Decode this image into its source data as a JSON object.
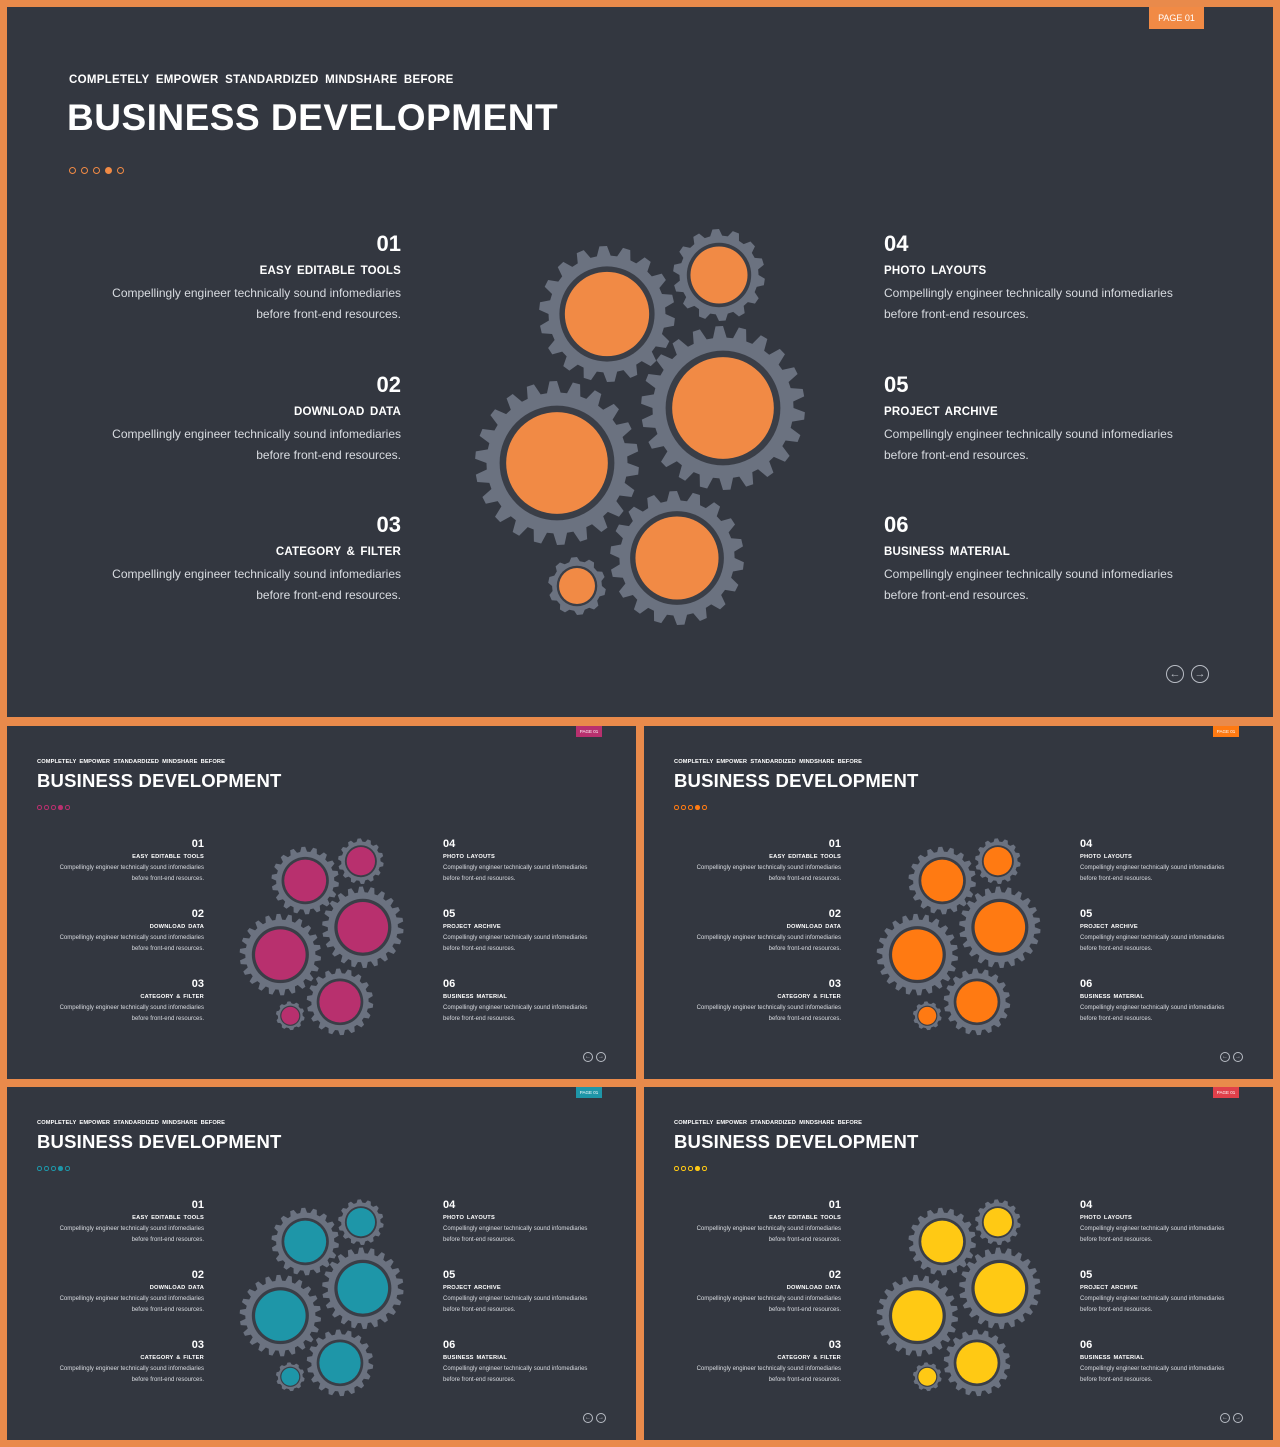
{
  "slides": [
    {
      "badge": "PAGE 01",
      "accent": "#f18a45",
      "kicker": "COMPLETELY  EMPOWER  STANDARDIZED  MINDSHARE  BEFORE",
      "title": "BUSINESS DEVELOPMENT",
      "items": [
        {
          "num": "01",
          "head": "EASY EDITABLE TOOLS",
          "desc1": "Compellingly engineer technically sound infomediaries",
          "desc2": "before front-end resources."
        },
        {
          "num": "02",
          "head": "DOWNLOAD DATA",
          "desc1": "Compellingly engineer technically sound infomediaries",
          "desc2": "before front-end resources."
        },
        {
          "num": "03",
          "head": "CATEGORY  &  FILTER",
          "desc1": "Compellingly engineer technically sound infomediaries",
          "desc2": "before front-end resources."
        },
        {
          "num": "04",
          "head": "PHOTO LAYOUTS",
          "desc1": "Compellingly engineer technically sound infomediaries",
          "desc2": "before front-end resources."
        },
        {
          "num": "05",
          "head": "PROJECT  ARCHIVE",
          "desc1": "Compellingly engineer technically sound infomediaries",
          "desc2": "before front-end resources."
        },
        {
          "num": "06",
          "head": "BUSINESS  MATERIAL",
          "desc1": "Compellingly engineer technically sound infomediaries",
          "desc2": "before front-end resources."
        }
      ],
      "nav_prev": "←",
      "nav_next": "→"
    },
    {
      "badge": "PAGE 01",
      "accent": "#b8306e",
      "kicker": "COMPLETELY  EMPOWER  STANDARDIZED  MINDSHARE  BEFORE",
      "title": "BUSINESS DEVELOPMENT",
      "items": [
        {
          "num": "01",
          "head": "EASY EDITABLE TOOLS",
          "desc1": "Compellingly engineer technically sound infomediaries",
          "desc2": "before front-end resources."
        },
        {
          "num": "02",
          "head": "DOWNLOAD DATA",
          "desc1": "Compellingly engineer technically sound infomediaries",
          "desc2": "before front-end resources."
        },
        {
          "num": "03",
          "head": "CATEGORY  &  FILTER",
          "desc1": "Compellingly engineer technically sound infomediaries",
          "desc2": "before front-end resources."
        },
        {
          "num": "04",
          "head": "PHOTO LAYOUTS",
          "desc1": "Compellingly engineer technically sound infomediaries",
          "desc2": "before front-end resources."
        },
        {
          "num": "05",
          "head": "PROJECT  ARCHIVE",
          "desc1": "Compellingly engineer technically sound infomediaries",
          "desc2": "before front-end resources."
        },
        {
          "num": "06",
          "head": "BUSINESS  MATERIAL",
          "desc1": "Compellingly engineer technically sound infomediaries",
          "desc2": "before front-end resources."
        }
      ],
      "nav_prev": "←",
      "nav_next": "→"
    },
    {
      "badge": "PAGE 01",
      "accent": "#ff7a12",
      "kicker": "COMPLETELY  EMPOWER  STANDARDIZED  MINDSHARE  BEFORE",
      "title": "BUSINESS DEVELOPMENT",
      "items": [
        {
          "num": "01",
          "head": "EASY EDITABLE TOOLS",
          "desc1": "Compellingly engineer technically sound infomediaries",
          "desc2": "before front-end resources."
        },
        {
          "num": "02",
          "head": "DOWNLOAD DATA",
          "desc1": "Compellingly engineer technically sound infomediaries",
          "desc2": "before front-end resources."
        },
        {
          "num": "03",
          "head": "CATEGORY  &  FILTER",
          "desc1": "Compellingly engineer technically sound infomediaries",
          "desc2": "before front-end resources."
        },
        {
          "num": "04",
          "head": "PHOTO LAYOUTS",
          "desc1": "Compellingly engineer technically sound infomediaries",
          "desc2": "before front-end resources."
        },
        {
          "num": "05",
          "head": "PROJECT  ARCHIVE",
          "desc1": "Compellingly engineer technically sound infomediaries",
          "desc2": "before front-end resources."
        },
        {
          "num": "06",
          "head": "BUSINESS  MATERIAL",
          "desc1": "Compellingly engineer technically sound infomediaries",
          "desc2": "before front-end resources."
        }
      ],
      "nav_prev": "←",
      "nav_next": "→"
    },
    {
      "badge": "PAGE 01",
      "accent": "#1e96a8",
      "kicker": "COMPLETELY  EMPOWER  STANDARDIZED  MINDSHARE  BEFORE",
      "title": "BUSINESS DEVELOPMENT",
      "items": [
        {
          "num": "01",
          "head": "EASY EDITABLE TOOLS",
          "desc1": "Compellingly engineer technically sound infomediaries",
          "desc2": "before front-end resources."
        },
        {
          "num": "02",
          "head": "DOWNLOAD DATA",
          "desc1": "Compellingly engineer technically sound infomediaries",
          "desc2": "before front-end resources."
        },
        {
          "num": "03",
          "head": "CATEGORY  &  FILTER",
          "desc1": "Compellingly engineer technically sound infomediaries",
          "desc2": "before front-end resources."
        },
        {
          "num": "04",
          "head": "PHOTO LAYOUTS",
          "desc1": "Compellingly engineer technically sound infomediaries",
          "desc2": "before front-end resources."
        },
        {
          "num": "05",
          "head": "PROJECT  ARCHIVE",
          "desc1": "Compellingly engineer technically sound infomediaries",
          "desc2": "before front-end resources."
        },
        {
          "num": "06",
          "head": "BUSINESS  MATERIAL",
          "desc1": "Compellingly engineer technically sound infomediaries",
          "desc2": "before front-end resources."
        }
      ],
      "nav_prev": "←",
      "nav_next": "→"
    },
    {
      "badge": "PAGE 01",
      "accent": "#ffc914",
      "badge_color": "#e0404a",
      "kicker": "COMPLETELY  EMPOWER  STANDARDIZED  MINDSHARE  BEFORE",
      "title": "BUSINESS DEVELOPMENT",
      "items": [
        {
          "num": "01",
          "head": "EASY EDITABLE TOOLS",
          "desc1": "Compellingly engineer technically sound infomediaries",
          "desc2": "before front-end resources."
        },
        {
          "num": "02",
          "head": "DOWNLOAD DATA",
          "desc1": "Compellingly engineer technically sound infomediaries",
          "desc2": "before front-end resources."
        },
        {
          "num": "03",
          "head": "CATEGORY  &  FILTER",
          "desc1": "Compellingly engineer technically sound infomediaries",
          "desc2": "before front-end resources."
        },
        {
          "num": "04",
          "head": "PHOTO LAYOUTS",
          "desc1": "Compellingly engineer technically sound infomediaries",
          "desc2": "before front-end resources."
        },
        {
          "num": "05",
          "head": "PROJECT  ARCHIVE",
          "desc1": "Compellingly engineer technically sound infomediaries",
          "desc2": "before front-end resources."
        },
        {
          "num": "06",
          "head": "BUSINESS  MATERIAL",
          "desc1": "Compellingly engineer technically sound infomediaries",
          "desc2": "before front-end resources."
        }
      ],
      "nav_prev": "←",
      "nav_next": "→"
    }
  ],
  "colors": {
    "frame": "#e98a4b",
    "slide_bg": "#333740",
    "gear_gray": "#6b7280",
    "gear_ring": "#3a3e47"
  }
}
